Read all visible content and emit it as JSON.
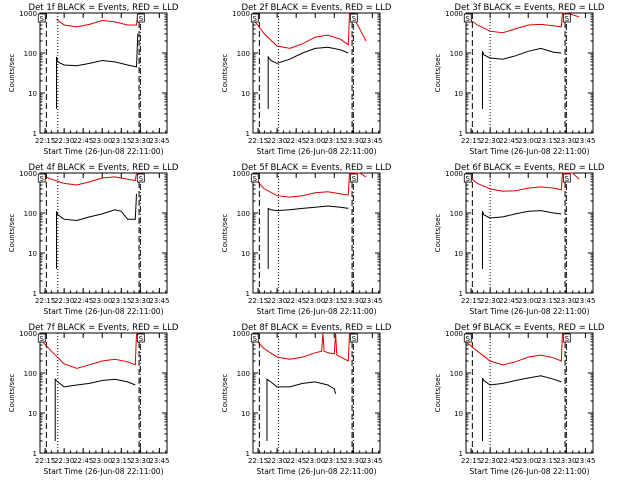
{
  "figure": {
    "colors": {
      "events": "#000000",
      "lld": "#dd0000",
      "axes": "#000000",
      "background": "#ffffff"
    },
    "marker_label": "S",
    "ylabel": "Counts/sec",
    "xlabel": "Start Time (26-Jun-08 22:11:00)"
  },
  "chart_data": [
    {
      "type": "line",
      "title": "Det 1f BLACK = Events, RED = LLD",
      "xlabel": "Start Time (26-Jun-08 22:11:00)",
      "ylabel": "Counts/sec",
      "yscale": "log",
      "ylim": [
        1,
        1000
      ],
      "xlim": [
        "22:11",
        "23:51"
      ],
      "x_ticks": [
        "22:15",
        "22:30",
        "22:45",
        "23:00",
        "23:15",
        "23:30",
        "23:45"
      ],
      "y_ticks": [
        "1",
        "10",
        "100",
        "1000"
      ],
      "vlines": {
        "dashed": [
          "22:16",
          "23:29"
        ],
        "dotted": [
          "22:25"
        ],
        "dashdot": [
          "23:30"
        ]
      },
      "markers": [
        "22:12",
        "23:30"
      ],
      "series": [
        {
          "name": "LLD",
          "color": "red",
          "x": [
            "22:24",
            "22:30",
            "22:40",
            "22:50",
            "23:00",
            "23:10",
            "23:20",
            "23:27",
            "23:28"
          ],
          "y": [
            700,
            500,
            450,
            520,
            650,
            600,
            500,
            500,
            1000
          ]
        },
        {
          "name": "Events",
          "color": "black",
          "x": [
            "22:24",
            "22:24",
            "22:25",
            "22:30",
            "22:40",
            "22:50",
            "23:00",
            "23:10",
            "23:20",
            "23:27",
            "23:28"
          ],
          "y": [
            4,
            80,
            60,
            50,
            48,
            55,
            65,
            60,
            50,
            45,
            300
          ]
        }
      ]
    },
    {
      "type": "line",
      "title": "Det 2f BLACK = Events, RED = LLD",
      "xlabel": "Start Time (26-Jun-08 22:11:00)",
      "ylabel": "Counts/sec",
      "yscale": "log",
      "ylim": [
        1,
        1000
      ],
      "xlim": [
        "22:11",
        "23:51"
      ],
      "x_ticks": [
        "22:15",
        "22:30",
        "22:45",
        "23:00",
        "23:15",
        "23:30",
        "23:45"
      ],
      "y_ticks": [
        "1",
        "10",
        "100",
        "1000"
      ],
      "vlines": {
        "dashed": [
          "22:16",
          "23:29"
        ],
        "dotted": [
          "22:31"
        ],
        "dashdot": [
          "23:30"
        ]
      },
      "markers": [
        "22:12",
        "23:30"
      ],
      "series": [
        {
          "name": "LLD",
          "color": "red",
          "x": [
            "22:11",
            "22:20",
            "22:30",
            "22:40",
            "22:50",
            "23:00",
            "23:10",
            "23:20",
            "23:26",
            "23:27",
            "23:30",
            "23:35",
            "23:40"
          ],
          "y": [
            700,
            300,
            150,
            130,
            170,
            250,
            280,
            220,
            160,
            1000,
            800,
            400,
            200
          ]
        },
        {
          "name": "Events",
          "color": "black",
          "x": [
            "22:23",
            "22:23",
            "22:25",
            "22:30",
            "22:40",
            "22:50",
            "23:00",
            "23:10",
            "23:20",
            "23:26"
          ],
          "y": [
            4,
            80,
            65,
            55,
            70,
            100,
            130,
            140,
            120,
            100
          ]
        }
      ]
    },
    {
      "type": "line",
      "title": "Det 3f BLACK = Events, RED = LLD",
      "xlabel": "Start Time (26-Jun-08 22:11:00)",
      "ylabel": "Counts/sec",
      "yscale": "log",
      "ylim": [
        1,
        1000
      ],
      "xlim": [
        "22:11",
        "23:51"
      ],
      "x_ticks": [
        "22:15",
        "22:30",
        "22:45",
        "23:00",
        "23:15",
        "23:30",
        "23:45"
      ],
      "y_ticks": [
        "1",
        "10",
        "100",
        "1000"
      ],
      "vlines": {
        "dashed": [
          "22:16",
          "23:29"
        ],
        "dotted": [
          "22:30"
        ],
        "dashdot": [
          "23:30"
        ]
      },
      "markers": [
        "22:12",
        "23:30"
      ],
      "series": [
        {
          "name": "LLD",
          "color": "red",
          "x": [
            "22:11",
            "22:20",
            "22:30",
            "22:40",
            "22:50",
            "23:00",
            "23:10",
            "23:20",
            "23:26",
            "23:27",
            "23:30",
            "23:35",
            "23:40"
          ],
          "y": [
            800,
            500,
            350,
            320,
            400,
            500,
            520,
            480,
            450,
            1000,
            1000,
            900,
            800
          ]
        },
        {
          "name": "Events",
          "color": "black",
          "x": [
            "22:24",
            "22:24",
            "22:25",
            "22:30",
            "22:40",
            "22:50",
            "23:00",
            "23:10",
            "23:20",
            "23:26"
          ],
          "y": [
            4,
            110,
            90,
            75,
            70,
            85,
            110,
            130,
            105,
            100
          ]
        }
      ]
    },
    {
      "type": "line",
      "title": "Det 4f BLACK = Events, RED = LLD",
      "xlabel": "Start Time (26-Jun-08 22:11:00)",
      "ylabel": "Counts/sec",
      "yscale": "log",
      "ylim": [
        1,
        1000
      ],
      "xlim": [
        "22:11",
        "23:51"
      ],
      "x_ticks": [
        "22:15",
        "22:30",
        "22:45",
        "23:00",
        "23:15",
        "23:30",
        "23:45"
      ],
      "y_ticks": [
        "1",
        "10",
        "100",
        "1000"
      ],
      "vlines": {
        "dashed": [
          "22:16",
          "23:29"
        ],
        "dotted": [
          "22:25"
        ],
        "dashdot": [
          "23:30"
        ]
      },
      "markers": [
        "22:12",
        "23:30"
      ],
      "series": [
        {
          "name": "LLD",
          "color": "red",
          "x": [
            "22:11",
            "22:20",
            "22:30",
            "22:40",
            "22:50",
            "23:00",
            "23:10",
            "23:20",
            "23:26",
            "23:27"
          ],
          "y": [
            900,
            700,
            550,
            500,
            600,
            750,
            800,
            700,
            650,
            1000
          ]
        },
        {
          "name": "Events",
          "color": "black",
          "x": [
            "22:24",
            "22:24",
            "22:25",
            "22:30",
            "22:40",
            "22:50",
            "23:00",
            "23:10",
            "23:15",
            "23:20",
            "23:26",
            "23:27"
          ],
          "y": [
            4,
            110,
            90,
            70,
            65,
            80,
            95,
            120,
            110,
            70,
            70,
            300
          ]
        }
      ]
    },
    {
      "type": "line",
      "title": "Det 5f BLACK = Events, RED = LLD",
      "xlabel": "Start Time (26-Jun-08 22:11:00)",
      "ylabel": "Counts/sec",
      "yscale": "log",
      "ylim": [
        1,
        1000
      ],
      "xlim": [
        "22:11",
        "23:51"
      ],
      "x_ticks": [
        "22:15",
        "22:30",
        "22:45",
        "23:00",
        "23:15",
        "23:30",
        "23:45"
      ],
      "y_ticks": [
        "1",
        "10",
        "100",
        "1000"
      ],
      "vlines": {
        "dashed": [
          "22:16",
          "23:29"
        ],
        "dotted": [
          "22:31"
        ],
        "dashdot": [
          "23:30"
        ]
      },
      "markers": [
        "22:12",
        "23:30"
      ],
      "series": [
        {
          "name": "LLD",
          "color": "red",
          "x": [
            "22:11",
            "22:20",
            "22:30",
            "22:40",
            "22:50",
            "23:00",
            "23:10",
            "23:20",
            "23:26",
            "23:27",
            "23:35",
            "23:40"
          ],
          "y": [
            800,
            400,
            270,
            250,
            270,
            320,
            340,
            300,
            280,
            1000,
            1000,
            800
          ]
        },
        {
          "name": "Events",
          "color": "black",
          "x": [
            "22:23",
            "22:23",
            "22:25",
            "22:30",
            "22:40",
            "22:50",
            "23:00",
            "23:10",
            "23:20",
            "23:26"
          ],
          "y": [
            4,
            130,
            120,
            115,
            120,
            130,
            140,
            150,
            140,
            130
          ]
        }
      ]
    },
    {
      "type": "line",
      "title": "Det 6f BLACK = Events, RED = LLD",
      "xlabel": "Start Time (26-Jun-08 22:11:00)",
      "ylabel": "Counts/sec",
      "yscale": "log",
      "ylim": [
        1,
        1000
      ],
      "xlim": [
        "22:11",
        "23:51"
      ],
      "x_ticks": [
        "22:15",
        "22:30",
        "22:45",
        "23:00",
        "23:15",
        "23:30",
        "23:45"
      ],
      "y_ticks": [
        "1",
        "10",
        "100",
        "1000"
      ],
      "vlines": {
        "dashed": [
          "22:16",
          "23:29"
        ],
        "dotted": [
          "22:30"
        ],
        "dashdot": [
          "23:30"
        ]
      },
      "markers": [
        "22:12",
        "23:30"
      ],
      "series": [
        {
          "name": "LLD",
          "color": "red",
          "x": [
            "22:11",
            "22:20",
            "22:30",
            "22:40",
            "22:50",
            "23:00",
            "23:10",
            "23:20",
            "23:26",
            "23:27",
            "23:35",
            "23:40"
          ],
          "y": [
            900,
            550,
            400,
            350,
            360,
            420,
            450,
            420,
            380,
            1000,
            1000,
            700
          ]
        },
        {
          "name": "Events",
          "color": "black",
          "x": [
            "22:24",
            "22:24",
            "22:25",
            "22:30",
            "22:40",
            "22:50",
            "23:00",
            "23:10",
            "23:20",
            "23:26"
          ],
          "y": [
            4,
            110,
            90,
            75,
            80,
            95,
            110,
            115,
            100,
            95
          ]
        }
      ]
    },
    {
      "type": "line",
      "title": "Det 7f BLACK = Events, RED = LLD",
      "xlabel": "Start Time (26-Jun-08 22:11:00)",
      "ylabel": "Counts/sec",
      "yscale": "log",
      "ylim": [
        1,
        1000
      ],
      "xlim": [
        "22:11",
        "23:51"
      ],
      "x_ticks": [
        "22:15",
        "22:30",
        "22:45",
        "23:00",
        "23:15",
        "23:30",
        "23:45"
      ],
      "y_ticks": [
        "1",
        "10",
        "100",
        "1000"
      ],
      "vlines": {
        "dashed": [
          "22:16",
          "23:29"
        ],
        "dotted": [
          "22:25"
        ],
        "dashdot": [
          "23:30"
        ]
      },
      "markers": [
        "22:12",
        "23:30"
      ],
      "series": [
        {
          "name": "LLD",
          "color": "red",
          "x": [
            "22:11",
            "22:20",
            "22:30",
            "22:40",
            "22:50",
            "23:00",
            "23:10",
            "23:20",
            "23:26",
            "23:27"
          ],
          "y": [
            700,
            350,
            170,
            130,
            160,
            200,
            220,
            190,
            160,
            1000
          ]
        },
        {
          "name": "Events",
          "color": "black",
          "x": [
            "22:23",
            "22:23",
            "22:25",
            "22:30",
            "22:40",
            "22:50",
            "23:00",
            "23:10",
            "23:20",
            "23:26"
          ],
          "y": [
            2,
            70,
            60,
            45,
            50,
            55,
            65,
            70,
            60,
            50
          ]
        }
      ]
    },
    {
      "type": "line",
      "title": "Det 8f BLACK = Events, RED = LLD",
      "xlabel": "Start Time (26-Jun-08 22:11:00)",
      "ylabel": "Counts/sec",
      "yscale": "log",
      "ylim": [
        1,
        1000
      ],
      "xlim": [
        "22:11",
        "23:51"
      ],
      "x_ticks": [
        "22:15",
        "22:30",
        "22:45",
        "23:00",
        "23:15",
        "23:30",
        "23:45"
      ],
      "y_ticks": [
        "1",
        "10",
        "100",
        "1000"
      ],
      "vlines": {
        "dashed": [
          "22:16",
          "23:29"
        ],
        "dotted": [
          "22:31"
        ],
        "dashdot": [
          "23:30"
        ]
      },
      "markers": [
        "22:12",
        "23:30"
      ],
      "series": [
        {
          "name": "LLD",
          "color": "red",
          "x": [
            "22:11",
            "22:20",
            "22:30",
            "22:40",
            "22:50",
            "23:00",
            "23:05",
            "23:06",
            "23:07",
            "23:10",
            "23:15",
            "23:16",
            "23:17",
            "23:20",
            "23:26",
            "23:27"
          ],
          "y": [
            800,
            400,
            250,
            220,
            250,
            320,
            350,
            1000,
            350,
            320,
            300,
            1000,
            280,
            250,
            200,
            1000
          ]
        },
        {
          "name": "Events",
          "color": "black",
          "x": [
            "22:22",
            "22:22",
            "22:25",
            "22:30",
            "22:40",
            "22:50",
            "23:00",
            "23:10",
            "23:15",
            "23:16"
          ],
          "y": [
            2,
            70,
            60,
            45,
            45,
            55,
            60,
            50,
            40,
            30
          ]
        }
      ]
    },
    {
      "type": "line",
      "title": "Det 9f BLACK = Events, RED = LLD",
      "xlabel": "Start Time (26-Jun-08 22:11:00)",
      "ylabel": "Counts/sec",
      "yscale": "log",
      "ylim": [
        1,
        1000
      ],
      "xlim": [
        "22:11",
        "23:51"
      ],
      "x_ticks": [
        "22:15",
        "22:30",
        "22:45",
        "23:00",
        "23:15",
        "23:30",
        "23:45"
      ],
      "y_ticks": [
        "1",
        "10",
        "100",
        "1000"
      ],
      "vlines": {
        "dashed": [
          "22:16",
          "23:29"
        ],
        "dotted": [
          "22:30"
        ],
        "dashdot": [
          "23:30"
        ]
      },
      "markers": [
        "22:12",
        "23:30"
      ],
      "series": [
        {
          "name": "LLD",
          "color": "red",
          "x": [
            "22:11",
            "22:20",
            "22:30",
            "22:40",
            "22:50",
            "23:00",
            "23:10",
            "23:20",
            "23:26",
            "23:27"
          ],
          "y": [
            600,
            350,
            200,
            160,
            190,
            250,
            280,
            240,
            200,
            1000
          ]
        },
        {
          "name": "Events",
          "color": "black",
          "x": [
            "22:24",
            "22:24",
            "22:25",
            "22:30",
            "22:40",
            "22:50",
            "23:00",
            "23:10",
            "23:20",
            "23:26"
          ],
          "y": [
            2,
            75,
            65,
            50,
            55,
            65,
            75,
            85,
            70,
            60
          ]
        }
      ]
    }
  ]
}
